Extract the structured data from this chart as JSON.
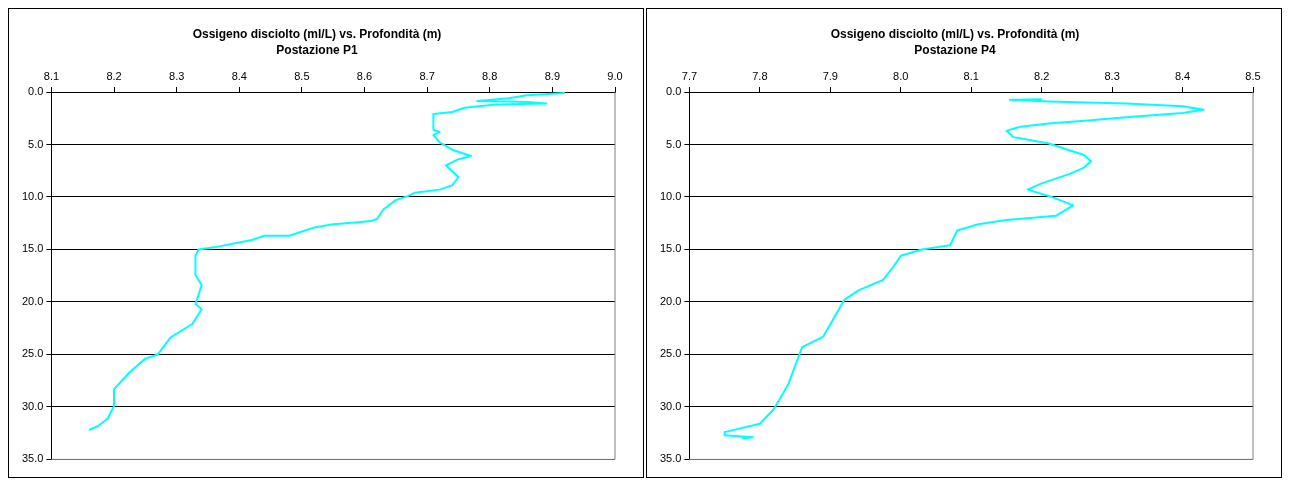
{
  "chart_data": [
    {
      "type": "line",
      "title": "Ossigeno disciolto (ml/L) vs. Profondità (m)",
      "subtitle": "Postazione P1",
      "xlim": [
        8.1,
        9.0
      ],
      "xticks": [
        8.1,
        8.2,
        8.3,
        8.4,
        8.5,
        8.6,
        8.7,
        8.8,
        8.9,
        {
          "value": 9.0,
          "label": "9.0"
        }
      ],
      "ylim": [
        35,
        0
      ],
      "yticks": [
        {
          "value": 0,
          "label": "0.0"
        },
        {
          "value": 5,
          "label": "5.0"
        },
        {
          "value": 10,
          "label": "10.0"
        },
        {
          "value": 15,
          "label": "15.0"
        },
        {
          "value": 20,
          "label": "20.0"
        },
        {
          "value": 25,
          "label": "25.0"
        },
        {
          "value": 30,
          "label": "30.0"
        },
        {
          "value": 35,
          "label": "35.0"
        }
      ],
      "grid": "y",
      "legend": false,
      "marker": "none",
      "line_style": "solid",
      "series": [
        {
          "color": "#00ffff",
          "x": [
            8.92,
            8.86,
            8.83,
            8.78,
            8.86,
            8.89,
            8.81,
            8.76,
            8.74,
            8.71,
            8.71,
            8.72,
            8.71,
            8.72,
            8.74,
            8.77,
            8.75,
            8.73,
            8.75,
            8.74,
            8.72,
            8.68,
            8.67,
            8.65,
            8.63,
            8.62,
            8.61,
            8.59,
            8.55,
            8.52,
            8.48,
            8.44,
            8.42,
            8.36,
            8.335,
            8.33,
            8.33,
            8.34,
            8.33,
            8.34,
            8.325,
            8.29,
            8.27,
            8.25,
            8.225,
            8.2,
            8.2,
            8.19,
            8.175,
            8.16
          ],
          "values": [
            0.1,
            0.3,
            0.6,
            0.85,
            0.95,
            1.1,
            1.2,
            1.5,
            1.9,
            2.1,
            3.6,
            3.8,
            4.1,
            4.8,
            5.5,
            6.1,
            6.4,
            7.0,
            8.1,
            8.9,
            9.3,
            9.6,
            9.9,
            10.3,
            11.2,
            12.1,
            12.3,
            12.4,
            12.6,
            12.9,
            13.7,
            13.7,
            14.1,
            14.8,
            15.0,
            15.6,
            17.4,
            18.4,
            20.2,
            20.7,
            22.1,
            23.4,
            25.0,
            25.4,
            26.7,
            28.3,
            29.9,
            31.1,
            31.8,
            32.2
          ]
        }
      ]
    },
    {
      "type": "line",
      "title": "Ossigeno disciolto (ml/L) vs. Profondità (m)",
      "subtitle": "Postazione P4",
      "xlim": [
        7.7,
        8.5
      ],
      "xticks": [
        7.7,
        7.8,
        7.9,
        {
          "value": 8.0,
          "label": "8.0"
        },
        8.1,
        8.2,
        8.3,
        8.4,
        8.5
      ],
      "ylim": [
        35,
        0
      ],
      "yticks": [
        {
          "value": 0,
          "label": "0.0"
        },
        {
          "value": 5,
          "label": "5.0"
        },
        {
          "value": 10,
          "label": "10.0"
        },
        {
          "value": 15,
          "label": "15.0"
        },
        {
          "value": 20,
          "label": "20.0"
        },
        {
          "value": 25,
          "label": "25.0"
        },
        {
          "value": 30,
          "label": "30.0"
        },
        {
          "value": 35,
          "label": "35.0"
        }
      ],
      "grid": "y",
      "legend": false,
      "marker": "none",
      "line_style": "solid",
      "series": [
        {
          "color": "#00ffff",
          "x": [
            8.2,
            8.155,
            8.21,
            8.32,
            8.4,
            8.43,
            8.4,
            8.32,
            8.27,
            8.21,
            8.17,
            8.15,
            8.16,
            8.21,
            8.26,
            8.27,
            8.26,
            8.24,
            8.2,
            8.18,
            8.21,
            8.245,
            8.22,
            8.15,
            8.11,
            8.08,
            8.07,
            8.03,
            8.0,
            7.99,
            7.975,
            7.94,
            7.92,
            7.89,
            7.86,
            7.84,
            7.82,
            7.8,
            7.75,
            7.75,
            7.79,
            7.775
          ],
          "values": [
            0.7,
            0.75,
            0.9,
            1.1,
            1.35,
            1.7,
            2.0,
            2.4,
            2.7,
            3.0,
            3.3,
            3.7,
            4.3,
            4.9,
            6.0,
            6.6,
            7.2,
            7.8,
            8.7,
            9.3,
            9.9,
            10.8,
            11.8,
            12.2,
            12.6,
            13.2,
            14.6,
            15.0,
            15.6,
            16.6,
            17.9,
            18.9,
            19.8,
            23.3,
            24.3,
            27.9,
            30.2,
            31.6,
            32.4,
            32.7,
            32.9,
            33.0
          ]
        }
      ]
    }
  ]
}
